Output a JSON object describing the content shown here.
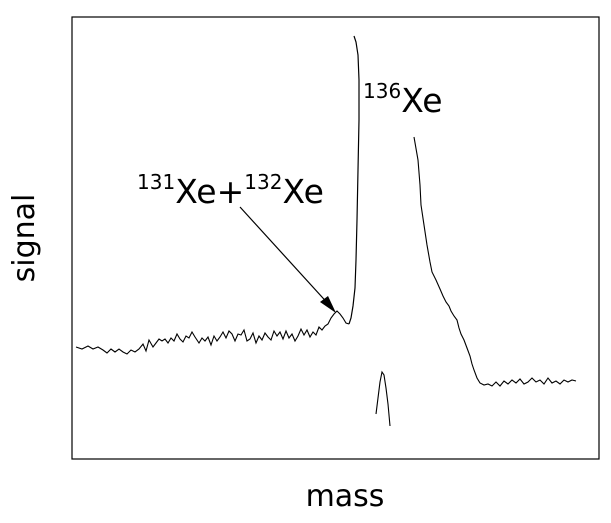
{
  "chart_data": {
    "type": "line",
    "title": "",
    "xlabel": "mass",
    "ylabel": "signal",
    "grid": false,
    "legend": "none",
    "annotations": [
      {
        "id": "peak-136",
        "mass_number": "136",
        "element": "Xe"
      },
      {
        "id": "peak-131-132",
        "mass_number_1": "131",
        "element_1": "Xe",
        "joiner": "+",
        "mass_number_2": "132",
        "element_2": "Xe",
        "arrow": true
      }
    ],
    "series": [
      {
        "values": "mass spectrum trace (unlabeled axes)"
      }
    ]
  },
  "colors": {
    "line": "#000000",
    "background": "#ffffff"
  }
}
